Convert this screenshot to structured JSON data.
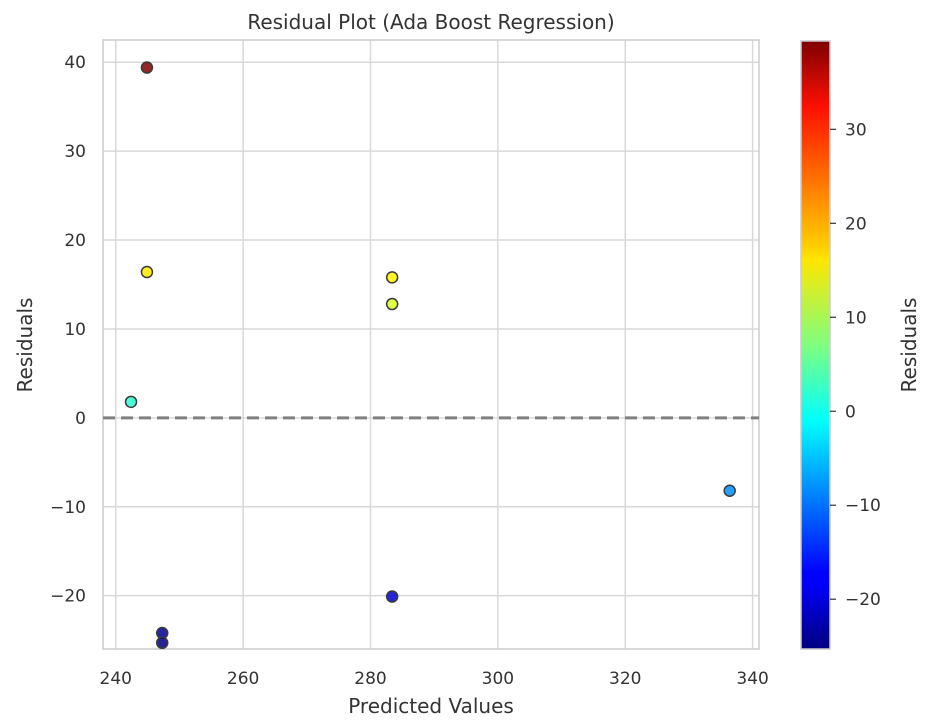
{
  "chart_data": {
    "type": "scatter",
    "title": "Residual Plot (Ada Boost Regression)",
    "xlabel": "Predicted Values",
    "ylabel": "Residuals",
    "xlim": [
      238,
      341
    ],
    "ylim": [
      -26,
      42.5
    ],
    "xticks": [
      240,
      260,
      280,
      300,
      320,
      340
    ],
    "yticks": [
      40,
      30,
      20,
      10,
      0,
      -10,
      -20
    ],
    "grid": true,
    "reference_line": {
      "y": 0,
      "style": "dashed",
      "color": "#808080"
    },
    "colormap": "jet",
    "colorbar": {
      "label": "Residuals",
      "range": [
        -25.3,
        39.4
      ],
      "ticks": [
        30,
        20,
        10,
        0,
        -10,
        -20
      ]
    },
    "points": [
      {
        "x": 244.9,
        "y": 39.4
      },
      {
        "x": 244.9,
        "y": 16.4
      },
      {
        "x": 242.4,
        "y": 1.8
      },
      {
        "x": 247.3,
        "y": -24.2
      },
      {
        "x": 247.3,
        "y": -25.3
      },
      {
        "x": 283.4,
        "y": 15.8
      },
      {
        "x": 283.4,
        "y": 12.8
      },
      {
        "x": 283.4,
        "y": -20.1
      },
      {
        "x": 336.4,
        "y": -8.2
      }
    ]
  }
}
